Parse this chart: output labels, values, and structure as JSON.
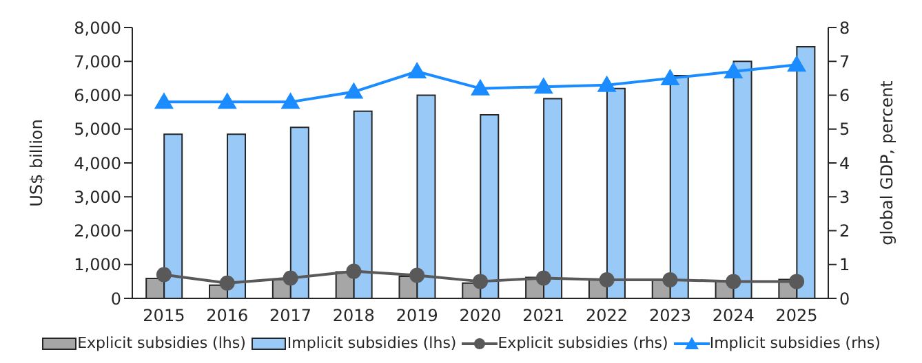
{
  "chart_data": {
    "type": "bar",
    "categories": [
      "2015",
      "2016",
      "2017",
      "2018",
      "2019",
      "2020",
      "2021",
      "2022",
      "2023",
      "2024",
      "2025"
    ],
    "ylabel": "US$ billion",
    "y2label": "global GDP, percent",
    "series": [
      {
        "name": "Explicit subsidies (lhs)",
        "color": "#a6a6a6",
        "values": [
          590,
          390,
          560,
          780,
          650,
          450,
          620,
          570,
          560,
          520,
          560
        ]
      },
      {
        "name": "Implicit subsidies (lhs)",
        "color": "#99c9f7",
        "values": [
          4850,
          4850,
          5050,
          5530,
          6000,
          5420,
          5900,
          6200,
          6580,
          7000,
          7430
        ]
      },
      {
        "name": "Explicit subsidies (rhs)",
        "type": "line",
        "axis": "y2",
        "marker": "circle",
        "color": "#595959",
        "values": [
          0.7,
          0.45,
          0.6,
          0.8,
          0.68,
          0.5,
          0.6,
          0.55,
          0.55,
          0.5,
          0.5
        ]
      },
      {
        "name": "Implicit subsidies (rhs)",
        "type": "line",
        "axis": "y2",
        "marker": "triangle",
        "color": "#1a8cff",
        "values": [
          5.8,
          5.8,
          5.8,
          6.1,
          6.7,
          6.2,
          6.25,
          6.3,
          6.5,
          6.7,
          6.9
        ]
      }
    ],
    "ylim": [
      0,
      8000
    ],
    "yticks": [
      {
        "value": 0,
        "label": "0"
      },
      {
        "value": 1000,
        "label": "1,000"
      },
      {
        "value": 2000,
        "label": "2,000"
      },
      {
        "value": 3000,
        "label": "3,000"
      },
      {
        "value": 4000,
        "label": "4,000"
      },
      {
        "value": 5000,
        "label": "5,000"
      },
      {
        "value": 6000,
        "label": "6,000"
      },
      {
        "value": 7000,
        "label": "7,000"
      },
      {
        "value": 8000,
        "label": "8,000"
      }
    ],
    "y2lim": [
      0,
      8
    ],
    "y2ticks": [
      0,
      1,
      2,
      3,
      4,
      5,
      6,
      7,
      8
    ],
    "grid": false,
    "legend": "bottom"
  }
}
